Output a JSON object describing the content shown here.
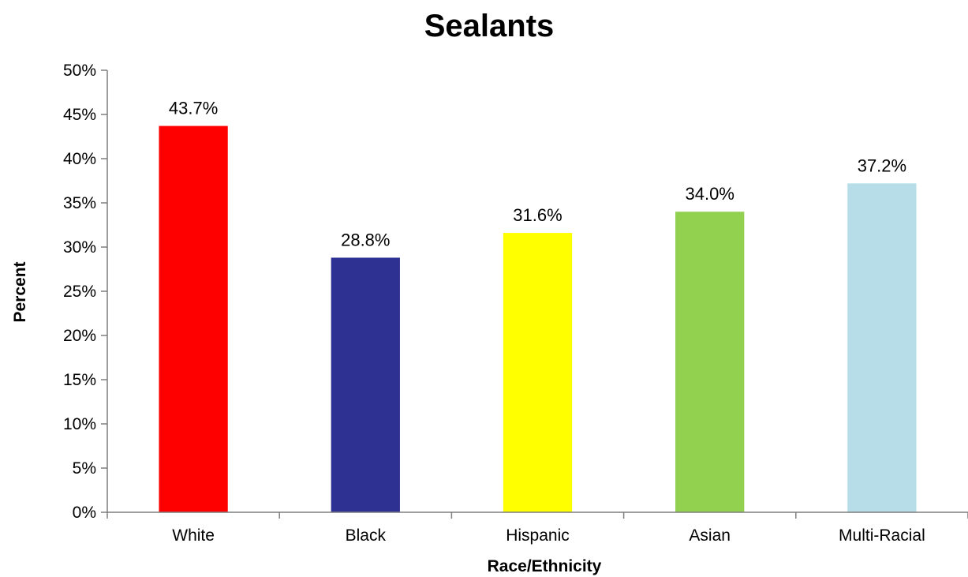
{
  "chart_data": {
    "type": "bar",
    "title": "Sealants",
    "xlabel": "Race/Ethnicity",
    "ylabel": "Percent",
    "categories": [
      "White",
      "Black",
      "Hispanic",
      "Asian",
      "Multi-Racial"
    ],
    "values": [
      43.7,
      28.8,
      31.6,
      34.0,
      37.2
    ],
    "data_labels": [
      "43.7%",
      "28.8%",
      "31.6%",
      "34.0%",
      "37.2%"
    ],
    "bar_colors": [
      "#ff0000",
      "#2e3192",
      "#ffff00",
      "#92d050",
      "#b7dee8"
    ],
    "ylim": [
      0,
      50
    ],
    "yticks": [
      0,
      5,
      10,
      15,
      20,
      25,
      30,
      35,
      40,
      45,
      50
    ],
    "ytick_labels": [
      "0%",
      "5%",
      "10%",
      "15%",
      "20%",
      "25%",
      "30%",
      "35%",
      "40%",
      "45%",
      "50%"
    ],
    "grid": false,
    "legend": "none"
  }
}
